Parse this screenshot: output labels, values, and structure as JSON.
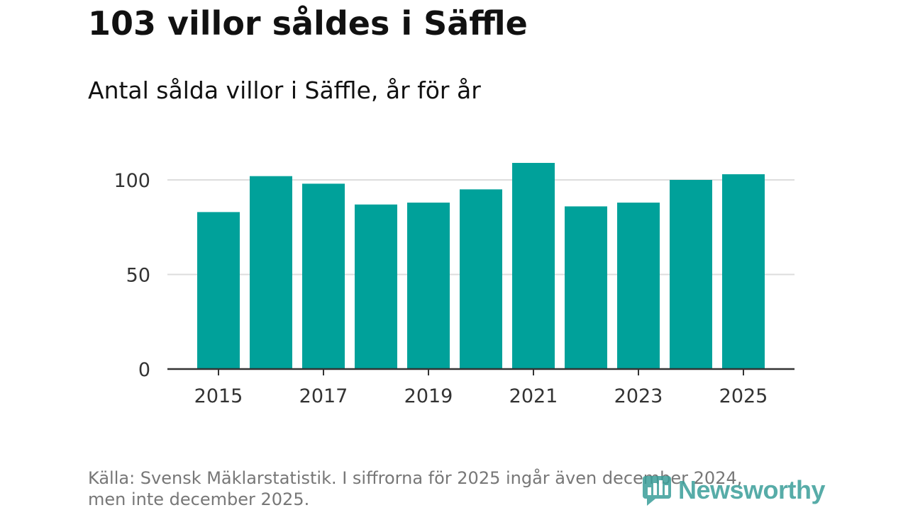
{
  "header": {
    "title": "103 villor såldes i Säffle",
    "subtitle": "Antal sålda villor i Säffle, år för år"
  },
  "footer": {
    "source_line1": "Källa: Svensk Mäklarstatistik. I siffrorna för 2025 ingår även december 2024,",
    "source_line2": "men inte december 2025."
  },
  "brand": {
    "name": "Newsworthy",
    "logo_icon": "newsworthy-logo-icon",
    "color": "#3a9e99"
  },
  "colors": {
    "bar": "#00a19a",
    "grid": "#dddddd",
    "axis": "#333333"
  },
  "chart_data": {
    "type": "bar",
    "title": "103 villor såldes i Säffle",
    "subtitle": "Antal sålda villor i Säffle, år för år",
    "categories": [
      "2015",
      "2016",
      "2017",
      "2018",
      "2019",
      "2020",
      "2021",
      "2022",
      "2023",
      "2024",
      "2025"
    ],
    "values": [
      83,
      102,
      98,
      87,
      88,
      95,
      109,
      86,
      88,
      100,
      103
    ],
    "x_tick_labels": [
      "2015",
      "2017",
      "2019",
      "2021",
      "2023",
      "2025"
    ],
    "y_ticks": [
      0,
      50,
      100
    ],
    "ylim": [
      0,
      110
    ],
    "xlabel": "",
    "ylabel": "",
    "grid": true
  }
}
